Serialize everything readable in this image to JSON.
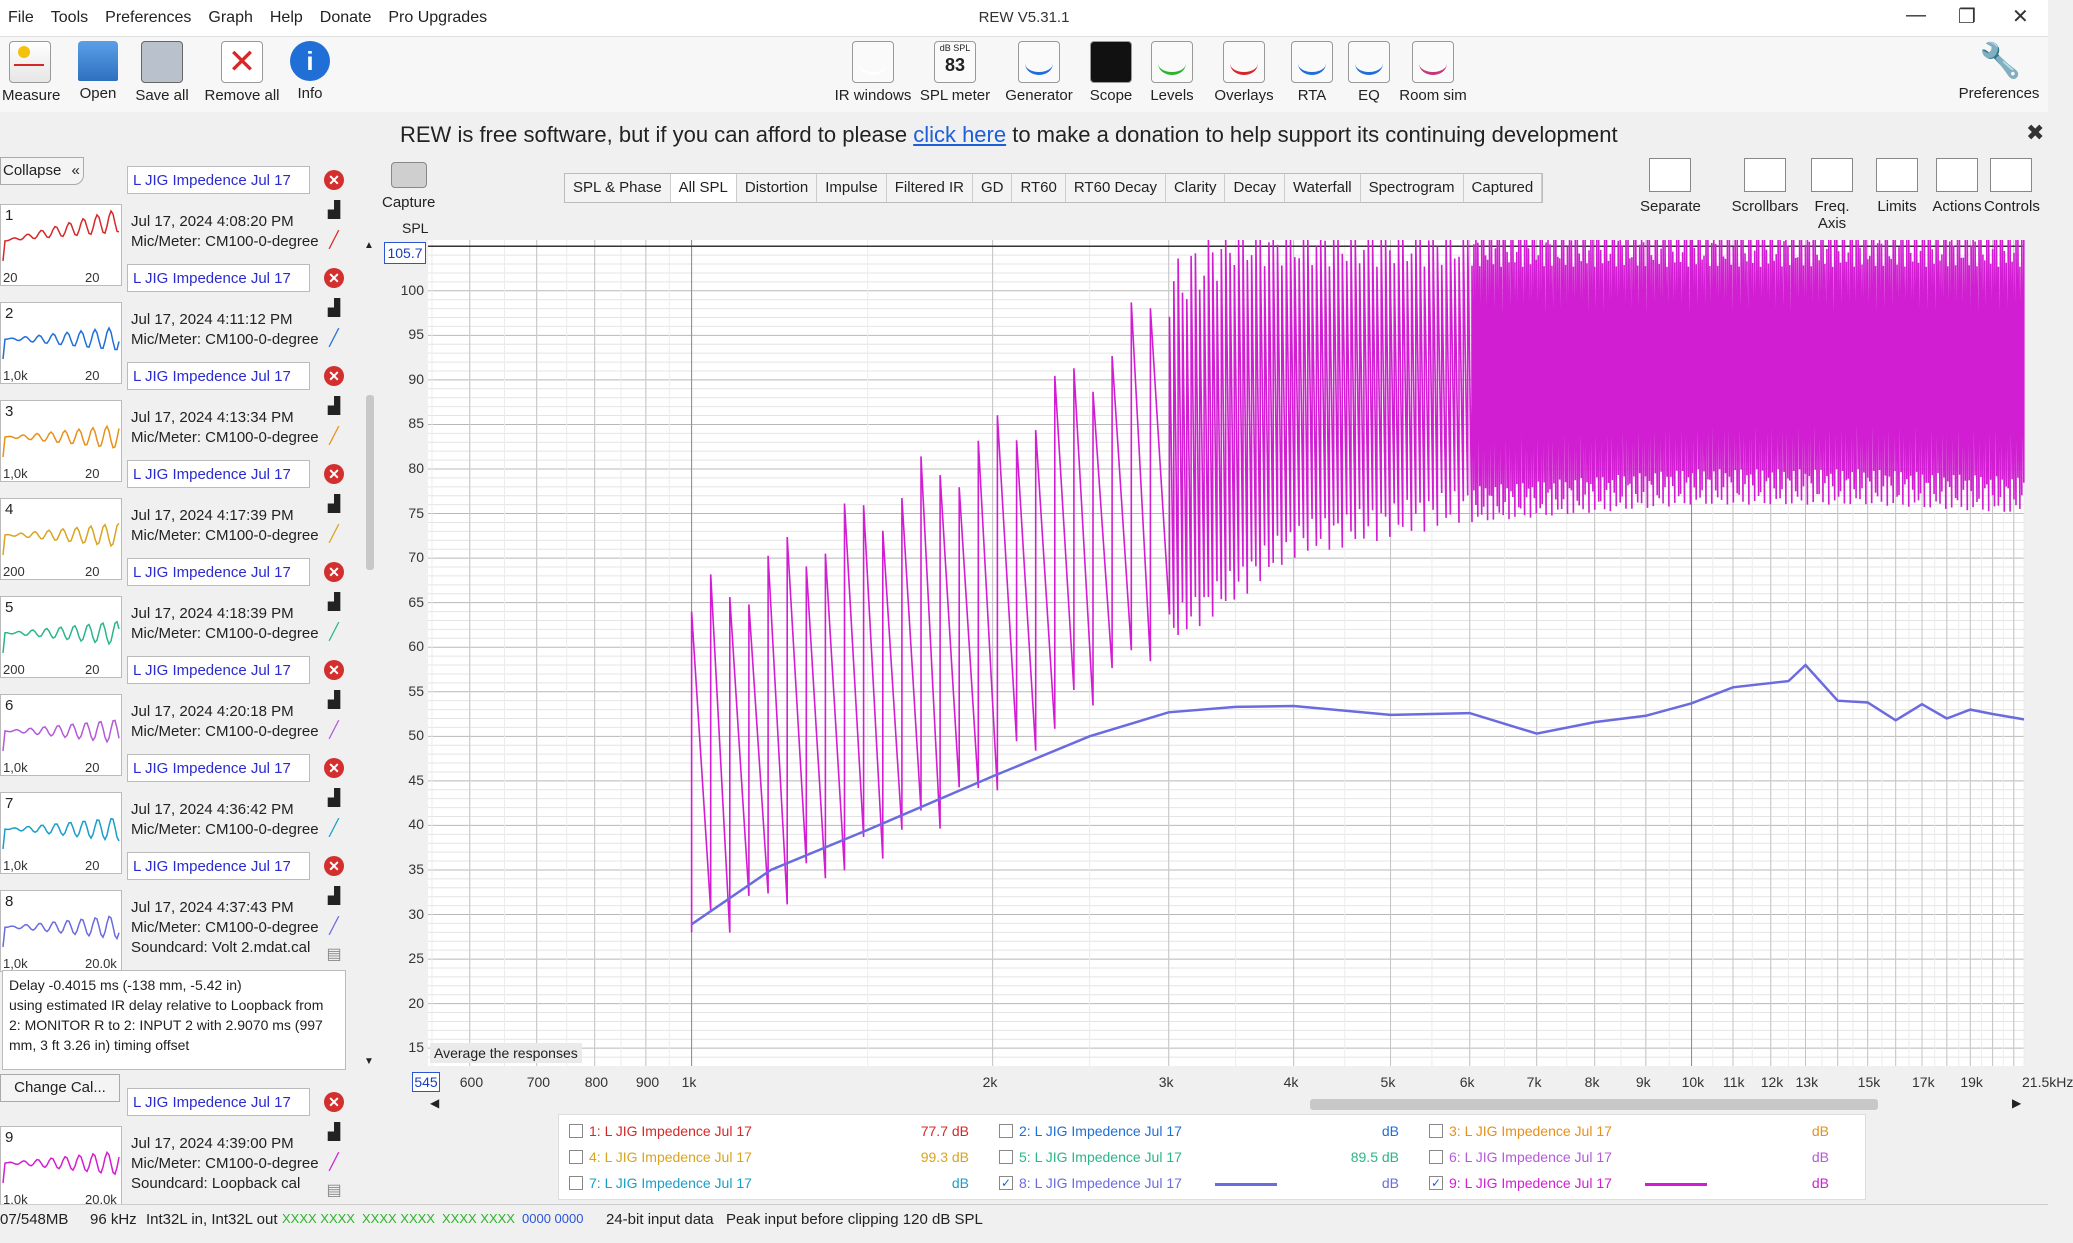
{
  "menu": [
    "File",
    "Tools",
    "Preferences",
    "Graph",
    "Help",
    "Donate",
    "Pro Upgrades"
  ],
  "app_title": "REW V5.31.1",
  "toolbar_left": [
    {
      "label": "Measure",
      "icon": "measure-icon"
    },
    {
      "label": "Open",
      "icon": "folder-icon"
    },
    {
      "label": "Save all",
      "icon": "save-icon"
    },
    {
      "label": "Remove all",
      "icon": "remove-icon"
    },
    {
      "label": "Info",
      "icon": "info-icon"
    }
  ],
  "toolbar_center": [
    {
      "label": "IR windows",
      "icon": "ir-windows-icon"
    },
    {
      "label": "SPL meter",
      "icon": "spl-meter-icon",
      "badge_top": "dB SPL",
      "badge_value": "83"
    },
    {
      "label": "Generator",
      "icon": "generator-icon"
    },
    {
      "label": "Scope",
      "icon": "scope-icon"
    },
    {
      "label": "Levels",
      "icon": "levels-icon"
    },
    {
      "label": "Overlays",
      "icon": "overlays-icon"
    },
    {
      "label": "RTA",
      "icon": "rta-icon"
    },
    {
      "label": "EQ",
      "icon": "eq-icon"
    },
    {
      "label": "Room sim",
      "icon": "room-sim-icon"
    }
  ],
  "toolbar_right": {
    "label": "Preferences",
    "icon": "wrench-icon"
  },
  "donate": {
    "before": "REW is free software, but if you can afford to please ",
    "link": "click here",
    "after": " to make a donation to help support its continuing development"
  },
  "collapse_label": "Collapse",
  "measurements": [
    {
      "n": "1",
      "name": "L JIG Impedence Jul 17",
      "date": "Jul 17, 2024 4:08:20 PM",
      "mic": "Mic/Meter: CM100-0-degree",
      "tick1": "20",
      "tick2": "20",
      "color": "#d62828"
    },
    {
      "n": "2",
      "name": "L JIG Impedence Jul 17",
      "date": "Jul 17, 2024 4:11:12 PM",
      "mic": "Mic/Meter: CM100-0-degree",
      "tick1": "1,0k",
      "tick2": "20",
      "color": "#1f6fd6"
    },
    {
      "n": "3",
      "name": "L JIG Impedence Jul 17",
      "date": "Jul 17, 2024 4:13:34 PM",
      "mic": "Mic/Meter: CM100-0-degree",
      "tick1": "1,0k",
      "tick2": "20",
      "color": "#e8901a"
    },
    {
      "n": "4",
      "name": "L JIG Impedence Jul 17",
      "date": "Jul 17, 2024 4:17:39 PM",
      "mic": "Mic/Meter: CM100-0-degree",
      "tick1": "200",
      "tick2": "20",
      "color": "#d9a420"
    },
    {
      "n": "5",
      "name": "L JIG Impedence Jul 17",
      "date": "Jul 17, 2024 4:18:39 PM",
      "mic": "Mic/Meter: CM100-0-degree",
      "tick1": "200",
      "tick2": "20",
      "color": "#2bb58a"
    },
    {
      "n": "6",
      "name": "L JIG Impedence Jul 17",
      "date": "Jul 17, 2024 4:20:18 PM",
      "mic": "Mic/Meter: CM100-0-degree",
      "tick1": "1,0k",
      "tick2": "20",
      "color": "#b35ad9"
    },
    {
      "n": "7",
      "name": "L JIG Impedence Jul 17",
      "date": "Jul 17, 2024 4:36:42 PM",
      "mic": "Mic/Meter: CM100-0-degree",
      "tick1": "1,0k",
      "tick2": "20",
      "color": "#1a9ec8"
    },
    {
      "n": "8",
      "name": "L JIG Impedence Jul 17",
      "date": "Jul 17, 2024 4:37:43 PM",
      "mic": "Mic/Meter: CM100-0-degree",
      "soundcard": "Soundcard: Volt 2.mdat.cal",
      "tick1": "1,0k",
      "tick2": "20.0k",
      "color": "#6b6be0"
    },
    {
      "n": "9",
      "name": "L JIG Impedence Jul 17",
      "date": "Jul 17, 2024 4:39:00 PM",
      "mic": "Mic/Meter: CM100-0-degree",
      "soundcard": "Soundcard: Loopback cal",
      "tick1": "1,0k",
      "tick2": "20.0k",
      "color": "#d21ed2"
    }
  ],
  "delay_text": [
    "Delay -0.4015 ms (-138 mm, -5.42 in)",
    "using estimated IR delay relative to Loopback from",
    "2: MONITOR R to 2: INPUT 2 with 2.9070 ms (997",
    "mm, 3 ft 3.26 in) timing offset"
  ],
  "change_cal": "Change Cal...",
  "capture_label": "Capture",
  "tabs": [
    "SPL & Phase",
    "All SPL",
    "Distortion",
    "Impulse",
    "Filtered IR",
    "GD",
    "RT60",
    "RT60 Decay",
    "Clarity",
    "Decay",
    "Waterfall",
    "Spectrogram",
    "Captured"
  ],
  "active_tab": "All SPL",
  "right_tools": [
    {
      "label": "Separate",
      "icon": "separate-icon"
    },
    {
      "label": "Scrollbars",
      "icon": "scrollbars-icon"
    },
    {
      "label": "Freq. Axis",
      "icon": "freq-axis-icon"
    },
    {
      "label": "Limits",
      "icon": "limits-icon"
    },
    {
      "label": "Actions",
      "icon": "actions-icon"
    },
    {
      "label": "Controls",
      "icon": "controls-icon"
    }
  ],
  "avg_button": "Average the responses",
  "legend": [
    {
      "label": "1: L JIG Impedence Jul 17",
      "value": "77.7 dB",
      "checked": false,
      "color": "#d62828"
    },
    {
      "label": "2: L JIG Impedence Jul 17",
      "value": "dB",
      "checked": false,
      "color": "#1f6fd6"
    },
    {
      "label": "3: L JIG Impedence Jul 17",
      "value": "dB",
      "checked": false,
      "color": "#e8901a"
    },
    {
      "label": "4: L JIG Impedence Jul 17",
      "value": "99.3 dB",
      "checked": false,
      "color": "#d9a420"
    },
    {
      "label": "5: L JIG Impedence Jul 17",
      "value": "89.5 dB",
      "checked": false,
      "color": "#2bb58a"
    },
    {
      "label": "6: L JIG Impedence Jul 17",
      "value": "dB",
      "checked": false,
      "color": "#b35ad9"
    },
    {
      "label": "7: L JIG Impedence Jul 17",
      "value": "dB",
      "checked": false,
      "color": "#1a9ec8"
    },
    {
      "label": "8: L JIG Impedence Jul 17",
      "value": "dB",
      "checked": true,
      "color": "#6b6be0"
    },
    {
      "label": "9: L JIG Impedence Jul 17",
      "value": "dB",
      "checked": true,
      "color": "#d21ed2"
    }
  ],
  "status": {
    "mem": "07/548MB",
    "rate": "96 kHz",
    "io": "Int32L in, Int32L out",
    "ind1": "XXXX XXXX",
    "ind2": "XXXX XXXX",
    "ind3": "XXXX XXXX",
    "ind4": "0000 0000",
    "bits": "24-bit input data",
    "peak": "Peak input before clipping 120 dB SPL"
  },
  "chart_data": {
    "type": "line",
    "ylabel": "SPL",
    "ytop_readout": "105.7",
    "x_min_readout": "545",
    "xscale": "log",
    "xlim": [
      545,
      21500
    ],
    "ylim": [
      13,
      105.7
    ],
    "yticks": [
      "100",
      "95",
      "90",
      "85",
      "80",
      "75",
      "70",
      "65",
      "60",
      "55",
      "50",
      "45",
      "40",
      "35",
      "30",
      "25",
      "20",
      "15"
    ],
    "xticks": [
      "600",
      "700",
      "800",
      "900",
      "1k",
      "2k",
      "3k",
      "4k",
      "5k",
      "6k",
      "7k",
      "8k",
      "9k",
      "10k",
      "11k",
      "12k",
      "13k",
      "15k",
      "17k",
      "19k",
      "21.5kHz"
    ],
    "grid": true,
    "series": [
      {
        "name": "8: L JIG Impedence Jul 17",
        "color": "#6b6be0",
        "x": [
          1000,
          1200,
          1500,
          2000,
          2500,
          3000,
          3500,
          4000,
          5000,
          6000,
          7000,
          8000,
          9000,
          10000,
          11000,
          12500,
          13000,
          14000,
          15000,
          16000,
          17000,
          18000,
          19000,
          20000,
          21500
        ],
        "y": [
          28.9,
          35.0,
          39.5,
          45.5,
          50.0,
          52.7,
          53.3,
          53.4,
          52.4,
          52.6,
          50.3,
          51.6,
          52.3,
          53.7,
          55.5,
          56.2,
          58.0,
          54.0,
          53.8,
          51.8,
          53.6,
          52.0,
          53.0,
          52.5,
          51.9
        ]
      },
      {
        "name": "9: L JIG Impedence Jul 17",
        "color": "#d21ed2",
        "envelope_peak_x": [
          1000,
          1500,
          2000,
          2500,
          3000,
          3500,
          4000,
          6000,
          10000,
          15000,
          21500
        ],
        "envelope_peak_y": [
          64,
          75,
          83,
          91,
          100,
          105.7,
          105.7,
          105.7,
          105.7,
          105.7,
          105.7
        ],
        "envelope_floor_x": [
          1000,
          1500,
          2000,
          2500,
          3000,
          3500,
          4000,
          6000,
          10000,
          15000,
          21500
        ],
        "envelope_floor_y": [
          28,
          37,
          45,
          55,
          62,
          67,
          72,
          76,
          78,
          78,
          77
        ]
      }
    ]
  }
}
